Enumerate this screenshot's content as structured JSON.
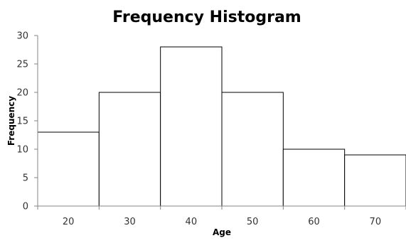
{
  "chart_data": {
    "type": "bar",
    "title": "Frequency Histogram",
    "xlabel": "Age",
    "ylabel": "Frequency",
    "categories": [
      "20",
      "30",
      "40",
      "50",
      "60",
      "70"
    ],
    "values": [
      13,
      20,
      28,
      20,
      10,
      9
    ],
    "ylim": [
      0,
      30
    ],
    "yticks": [
      "0",
      "5",
      "10",
      "15",
      "20",
      "25",
      "30"
    ],
    "grid": false,
    "legend": "none",
    "bar_fill": "#ffffff",
    "bar_stroke": "#000000",
    "axis_color": "#868686"
  }
}
